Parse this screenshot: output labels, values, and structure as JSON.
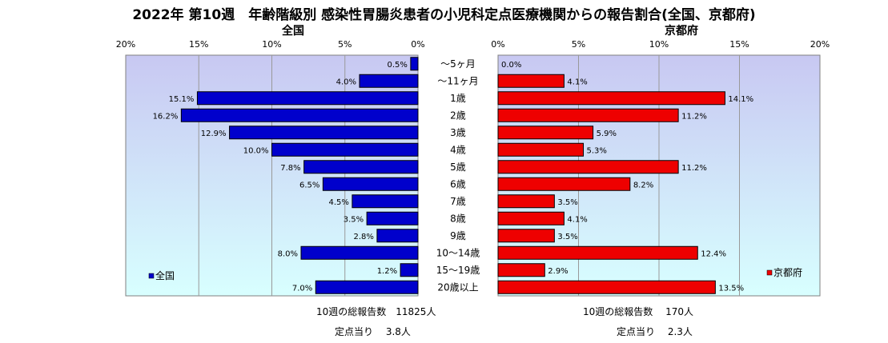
{
  "title": "2022年 第10週　年齢階級別 感染性胃腸炎患者の小児科定点医療機関からの報告割合(全国、京都府)",
  "colors": {
    "national": "#0000cc",
    "kyoto": "#ee0000",
    "plot_top": "#c8c8f2",
    "plot_bottom": "#d8ffff"
  },
  "chart_data": [
    {
      "type": "bar",
      "orientation": "horizontal-reversed",
      "panel_label": "全国",
      "legend": "全国",
      "legend_position": "bottom-left",
      "xlim": [
        0,
        20
      ],
      "ticks": [
        "20%",
        "15%",
        "10%",
        "5%",
        "0%"
      ],
      "tick_values": [
        20,
        15,
        10,
        5,
        0
      ],
      "grid": true,
      "categories": [
        "～5ヶ月",
        "～11ヶ月",
        "1歳",
        "2歳",
        "3歳",
        "4歳",
        "5歳",
        "6歳",
        "7歳",
        "8歳",
        "9歳",
        "10～14歳",
        "15～19歳",
        "20歳以上"
      ],
      "values": [
        0.5,
        4.0,
        15.1,
        16.2,
        12.9,
        10.0,
        7.8,
        6.5,
        4.5,
        3.5,
        2.8,
        8.0,
        1.2,
        7.0
      ],
      "labels": [
        "0.5%",
        "4.0%",
        "15.1%",
        "16.2%",
        "12.9%",
        "10.0%",
        "7.8%",
        "6.5%",
        "4.5%",
        "3.5%",
        "2.8%",
        "8.0%",
        "1.2%",
        "7.0%"
      ]
    },
    {
      "type": "bar",
      "orientation": "horizontal",
      "panel_label": "京都府",
      "legend": "京都府",
      "legend_position": "bottom-right",
      "xlim": [
        0,
        20
      ],
      "ticks": [
        "0%",
        "5%",
        "10%",
        "15%",
        "20%"
      ],
      "tick_values": [
        0,
        5,
        10,
        15,
        20
      ],
      "grid": true,
      "categories": [
        "～5ヶ月",
        "～11ヶ月",
        "1歳",
        "2歳",
        "3歳",
        "4歳",
        "5歳",
        "6歳",
        "7歳",
        "8歳",
        "9歳",
        "10～14歳",
        "15～19歳",
        "20歳以上"
      ],
      "values": [
        0.0,
        4.1,
        14.1,
        11.2,
        5.9,
        5.3,
        11.2,
        8.2,
        3.5,
        4.1,
        3.5,
        12.4,
        2.9,
        13.5
      ],
      "labels": [
        "0.0%",
        "4.1%",
        "14.1%",
        "11.2%",
        "5.9%",
        "5.3%",
        "11.2%",
        "8.2%",
        "3.5%",
        "4.1%",
        "3.5%",
        "12.4%",
        "2.9%",
        "13.5%"
      ]
    }
  ],
  "summary": {
    "national_total": "10週の総報告数　11825人",
    "national_per": "定点当り　 3.8人",
    "kyoto_total": "10週の総報告数　 170人",
    "kyoto_per": "定点当り　 2.3人"
  }
}
